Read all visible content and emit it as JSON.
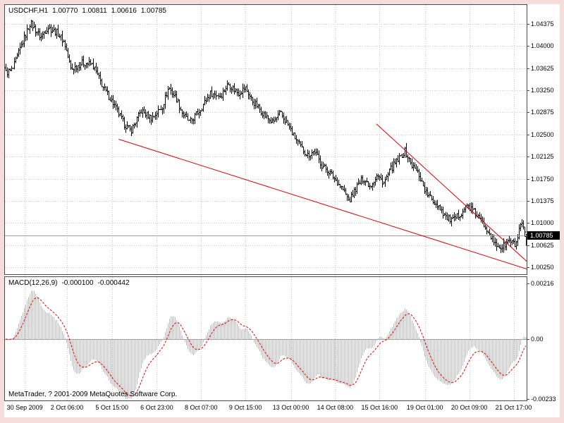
{
  "header": {
    "symbol": "USDCHF,H1",
    "open": "1.00770",
    "high": "1.00811",
    "low": "1.00616",
    "close": "1.00785"
  },
  "macd_panel": {
    "name": "MACD(12,26,9)",
    "value": "-0.000100",
    "signal_value": "-0.000442",
    "scale_ticks": [
      {
        "label": "0.00216",
        "value": 0.00216
      },
      {
        "label": "0.00",
        "value": 0
      },
      {
        "label": "-0.00233",
        "value": -0.00233
      }
    ]
  },
  "copyright": "MetaTrader, ? 2001-2009 MetaQuotes Software Corp.",
  "price_axis": {
    "ticks": [
      {
        "label": "1.04375",
        "value": 1.04375
      },
      {
        "label": "1.04000",
        "value": 1.04
      },
      {
        "label": "1.03625",
        "value": 1.03625
      },
      {
        "label": "1.03250",
        "value": 1.0325
      },
      {
        "label": "1.02875",
        "value": 1.02875
      },
      {
        "label": "1.02500",
        "value": 1.025
      },
      {
        "label": "1.02125",
        "value": 1.02125
      },
      {
        "label": "1.01750",
        "value": 1.0175
      },
      {
        "label": "1.01375",
        "value": 1.01375
      },
      {
        "label": "1.01000",
        "value": 1.01
      },
      {
        "label": "1.00625",
        "value": 1.00625
      },
      {
        "label": "1.00250",
        "value": 1.0025
      }
    ],
    "current_price": {
      "label": "1.00785",
      "value": 1.00785
    }
  },
  "time_axis": {
    "labels": [
      "30 Sep 2009",
      "2 Oct 06:00",
      "5 Oct 15:00",
      "6 Oct 23:00",
      "8 Oct 07:00",
      "9 Oct 15:00",
      "13 Oct 00:00",
      "14 Oct 08:00",
      "15 Oct 16:00",
      "19 Oct 01:00",
      "20 Oct 09:00",
      "21 Oct 17:00"
    ],
    "fracs": [
      0.038,
      0.119,
      0.205,
      0.291,
      0.376,
      0.461,
      0.548,
      0.633,
      0.718,
      0.805,
      0.89,
      0.975
    ]
  },
  "chart_data": {
    "type": "ohlc-bar",
    "symbol": "USDCHF",
    "timeframe": "H1",
    "title": "USDCHF hourly bars with two descending red trendlines and MACD(12,26,9) subwindow",
    "y_axis": {
      "top": 1.04699,
      "bottom": 1.0013
    },
    "ylim": [
      1.0013,
      1.04699
    ],
    "bar_count": 370,
    "noise": 0.0011,
    "wick": 0.0008,
    "last_bar": {
      "o": 1.0077,
      "h": 1.00811,
      "l": 1.00616,
      "c": 1.00785
    },
    "anchors": [
      [
        0,
        1.0355
      ],
      [
        0.013,
        1.036
      ],
      [
        0.027,
        1.0395
      ],
      [
        0.047,
        1.044
      ],
      [
        0.067,
        1.0415
      ],
      [
        0.08,
        1.0432
      ],
      [
        0.1,
        1.0422
      ],
      [
        0.113,
        1.0405
      ],
      [
        0.125,
        1.036
      ],
      [
        0.147,
        1.0372
      ],
      [
        0.167,
        1.0368
      ],
      [
        0.187,
        1.033
      ],
      [
        0.207,
        1.0302
      ],
      [
        0.227,
        1.0268
      ],
      [
        0.24,
        1.0256
      ],
      [
        0.26,
        1.029
      ],
      [
        0.28,
        1.0278
      ],
      [
        0.3,
        1.0296
      ],
      [
        0.313,
        1.033
      ],
      [
        0.327,
        1.0312
      ],
      [
        0.34,
        1.0285
      ],
      [
        0.353,
        1.027
      ],
      [
        0.373,
        1.0292
      ],
      [
        0.393,
        1.032
      ],
      [
        0.413,
        1.0316
      ],
      [
        0.427,
        1.0336
      ],
      [
        0.447,
        1.032
      ],
      [
        0.46,
        1.033
      ],
      [
        0.473,
        1.0308
      ],
      [
        0.487,
        1.0294
      ],
      [
        0.5,
        1.028
      ],
      [
        0.513,
        1.027
      ],
      [
        0.527,
        1.0286
      ],
      [
        0.54,
        1.027
      ],
      [
        0.553,
        1.0248
      ],
      [
        0.567,
        1.0228
      ],
      [
        0.58,
        1.0215
      ],
      [
        0.593,
        1.0222
      ],
      [
        0.607,
        1.0198
      ],
      [
        0.62,
        1.0188
      ],
      [
        0.633,
        1.0174
      ],
      [
        0.647,
        1.0158
      ],
      [
        0.66,
        1.0137
      ],
      [
        0.673,
        1.016
      ],
      [
        0.687,
        1.0176
      ],
      [
        0.7,
        1.0163
      ],
      [
        0.713,
        1.018
      ],
      [
        0.727,
        1.0168
      ],
      [
        0.74,
        1.0192
      ],
      [
        0.753,
        1.0206
      ],
      [
        0.767,
        1.0222
      ],
      [
        0.78,
        1.0198
      ],
      [
        0.793,
        1.0184
      ],
      [
        0.807,
        1.0152
      ],
      [
        0.82,
        1.0138
      ],
      [
        0.833,
        1.0128
      ],
      [
        0.847,
        1.0108
      ],
      [
        0.86,
        1.0104
      ],
      [
        0.873,
        1.0116
      ],
      [
        0.887,
        1.013
      ],
      [
        0.9,
        1.0118
      ],
      [
        0.913,
        1.0104
      ],
      [
        0.927,
        1.0088
      ],
      [
        0.94,
        1.0063
      ],
      [
        0.953,
        1.0058
      ],
      [
        0.967,
        1.007
      ],
      [
        0.98,
        1.0062
      ],
      [
        0.99,
        1.0098
      ],
      [
        1,
        1.00785
      ]
    ],
    "trendlines": [
      {
        "x1": 0.218,
        "p1": 1.0242,
        "x2": 1.0,
        "p2": 1.0022
      },
      {
        "x1": 0.712,
        "p1": 1.0268,
        "x2": 1.0,
        "p2": 1.0035
      }
    ],
    "macd": {
      "fast": 12,
      "slow": 26,
      "signal": 9,
      "scale_max": 0.0024,
      "scale_min": -0.00238,
      "cap_pos": 0.00216,
      "cap_neg": 0.00233
    }
  },
  "colors": {
    "frame": "#f7dcdc",
    "panel_bg": "#ffffff",
    "panel_border": "#4a4a4a",
    "grid": "#c9c9c9",
    "bar": "#000000",
    "trendline": "#e60000",
    "macd_histogram": "#bdbdbd",
    "macd_signal": "#e60000",
    "zero_line": "#9a9a9a",
    "price_line": "#9c9c9c",
    "price_box_bg": "#000000",
    "price_box_text": "#ffffff",
    "text": "#000000"
  }
}
